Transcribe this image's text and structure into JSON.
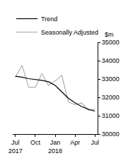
{
  "chart_data": {
    "type": "line",
    "ylabel": "$m",
    "categories": [
      "Jul\n2017",
      null,
      null,
      "Oct",
      null,
      null,
      "Jan\n2018",
      null,
      null,
      "Apr",
      null,
      null,
      "Jul"
    ],
    "series": [
      {
        "name": "Trend",
        "color": "#000000",
        "values": [
          33150,
          33100,
          33020,
          32980,
          32930,
          32850,
          32650,
          32300,
          31950,
          31700,
          31500,
          31350,
          31250
        ]
      },
      {
        "name": "Seasonally Adjusted",
        "color": "#b0b0b0",
        "values": [
          33100,
          33750,
          32550,
          32550,
          33300,
          32650,
          32900,
          33200,
          31750,
          31600,
          31700,
          31300,
          31350
        ]
      }
    ],
    "ylim": [
      30000,
      35000
    ],
    "yticks": [
      30000,
      31000,
      32000,
      33000,
      34000,
      35000
    ],
    "grid": false,
    "legend": "top-left"
  }
}
